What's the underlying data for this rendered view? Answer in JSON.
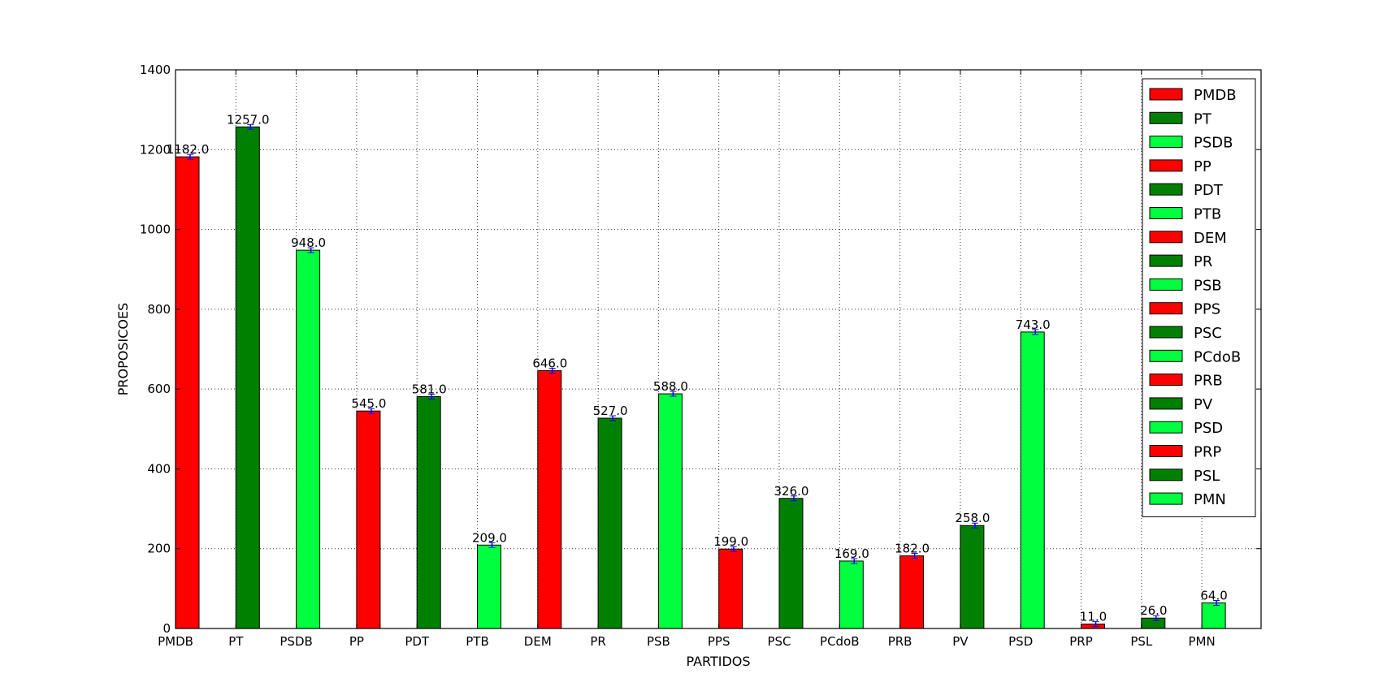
{
  "chart_data": {
    "type": "bar",
    "title": "",
    "xlabel": "PARTIDOS",
    "ylabel": "PROPOSICOES",
    "ylim": [
      0,
      1400
    ],
    "yticks": [
      0,
      200,
      400,
      600,
      800,
      1000,
      1200,
      1400
    ],
    "grid": true,
    "legend_position": "top-right",
    "color_cycle": [
      "#ff0000",
      "#008000",
      "#00ff3f"
    ],
    "categories": [
      "PMDB",
      "PT",
      "PSDB",
      "PP",
      "PDT",
      "PTB",
      "DEM",
      "PR",
      "PSB",
      "PPS",
      "PSC",
      "PCdoB",
      "PRB",
      "PV",
      "PSD",
      "PRP",
      "PSL",
      "PMN"
    ],
    "values": [
      1182.0,
      1257.0,
      948.0,
      545.0,
      581.0,
      209.0,
      646.0,
      527.0,
      588.0,
      199.0,
      326.0,
      169.0,
      182.0,
      258.0,
      743.0,
      11.0,
      26.0,
      64.0
    ],
    "value_labels": [
      "1182.0",
      "1257.0",
      "948.0",
      "545.0",
      "581.0",
      "209.0",
      "646.0",
      "527.0",
      "588.0",
      "199.0",
      "326.0",
      "169.0",
      "182.0",
      "258.0",
      "743.0",
      "11.0",
      "26.0",
      "64.0"
    ],
    "legend": [
      "PMDB",
      "PT",
      "PSDB",
      "PP",
      "PDT",
      "PTB",
      "DEM",
      "PR",
      "PSB",
      "PPS",
      "PSC",
      "PCdoB",
      "PRB",
      "PV",
      "PSD",
      "PRP",
      "PSL",
      "PMN"
    ],
    "errorbar_color": "#0000ff"
  }
}
